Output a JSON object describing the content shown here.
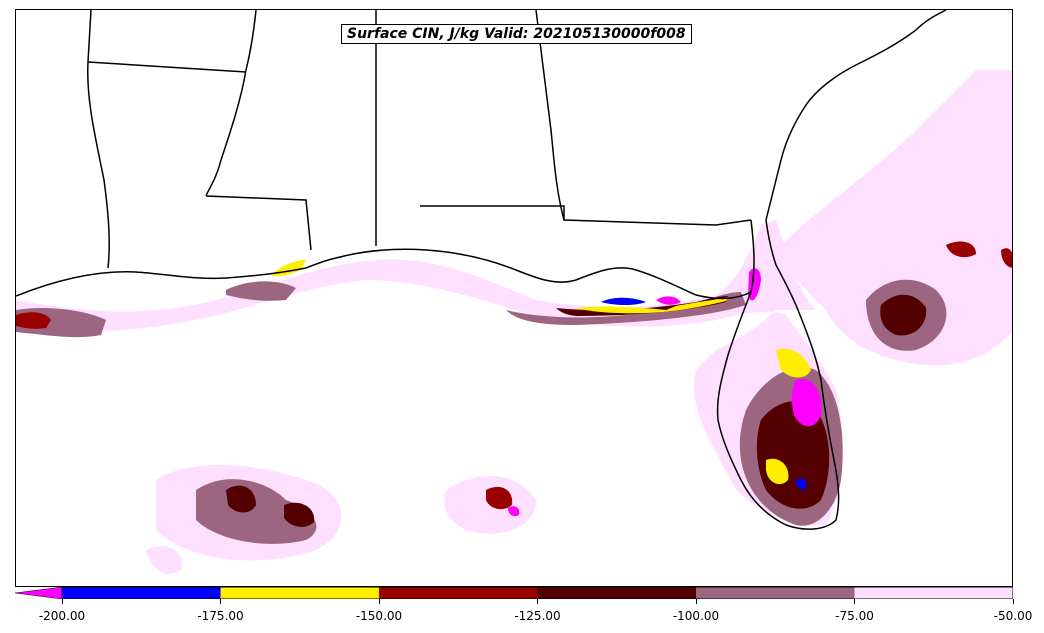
{
  "title": "Surface CIN, J/kg Valid: 202105130000f008",
  "colorbar": {
    "extend": "min",
    "extension_color": "#ff00ff",
    "bins": [
      {
        "from": -200,
        "to": -175,
        "color": "#0000ff"
      },
      {
        "from": -175,
        "to": -150,
        "color": "#ffee00"
      },
      {
        "from": -150,
        "to": -125,
        "color": "#990000"
      },
      {
        "from": -125,
        "to": -100,
        "color": "#550000"
      },
      {
        "from": -100,
        "to": -75,
        "color": "#9c6680"
      },
      {
        "from": -75,
        "to": -50,
        "color": "#ffdfff"
      }
    ],
    "ticks": [
      "-200.00",
      "-175.00",
      "-150.00",
      "-125.00",
      "-100.00",
      "-75.00",
      "-50.00"
    ]
  },
  "map": {
    "region": "Gulf of Mexico / Southeastern United States",
    "border_color": "#000000",
    "fill_colors": {
      "very_light": "#ffdfff",
      "mauve": "#9c6680",
      "dark_red": "#550000",
      "red": "#990000",
      "yellow": "#ffee00",
      "blue": "#0000ff",
      "magenta": "#ff00ff"
    }
  }
}
